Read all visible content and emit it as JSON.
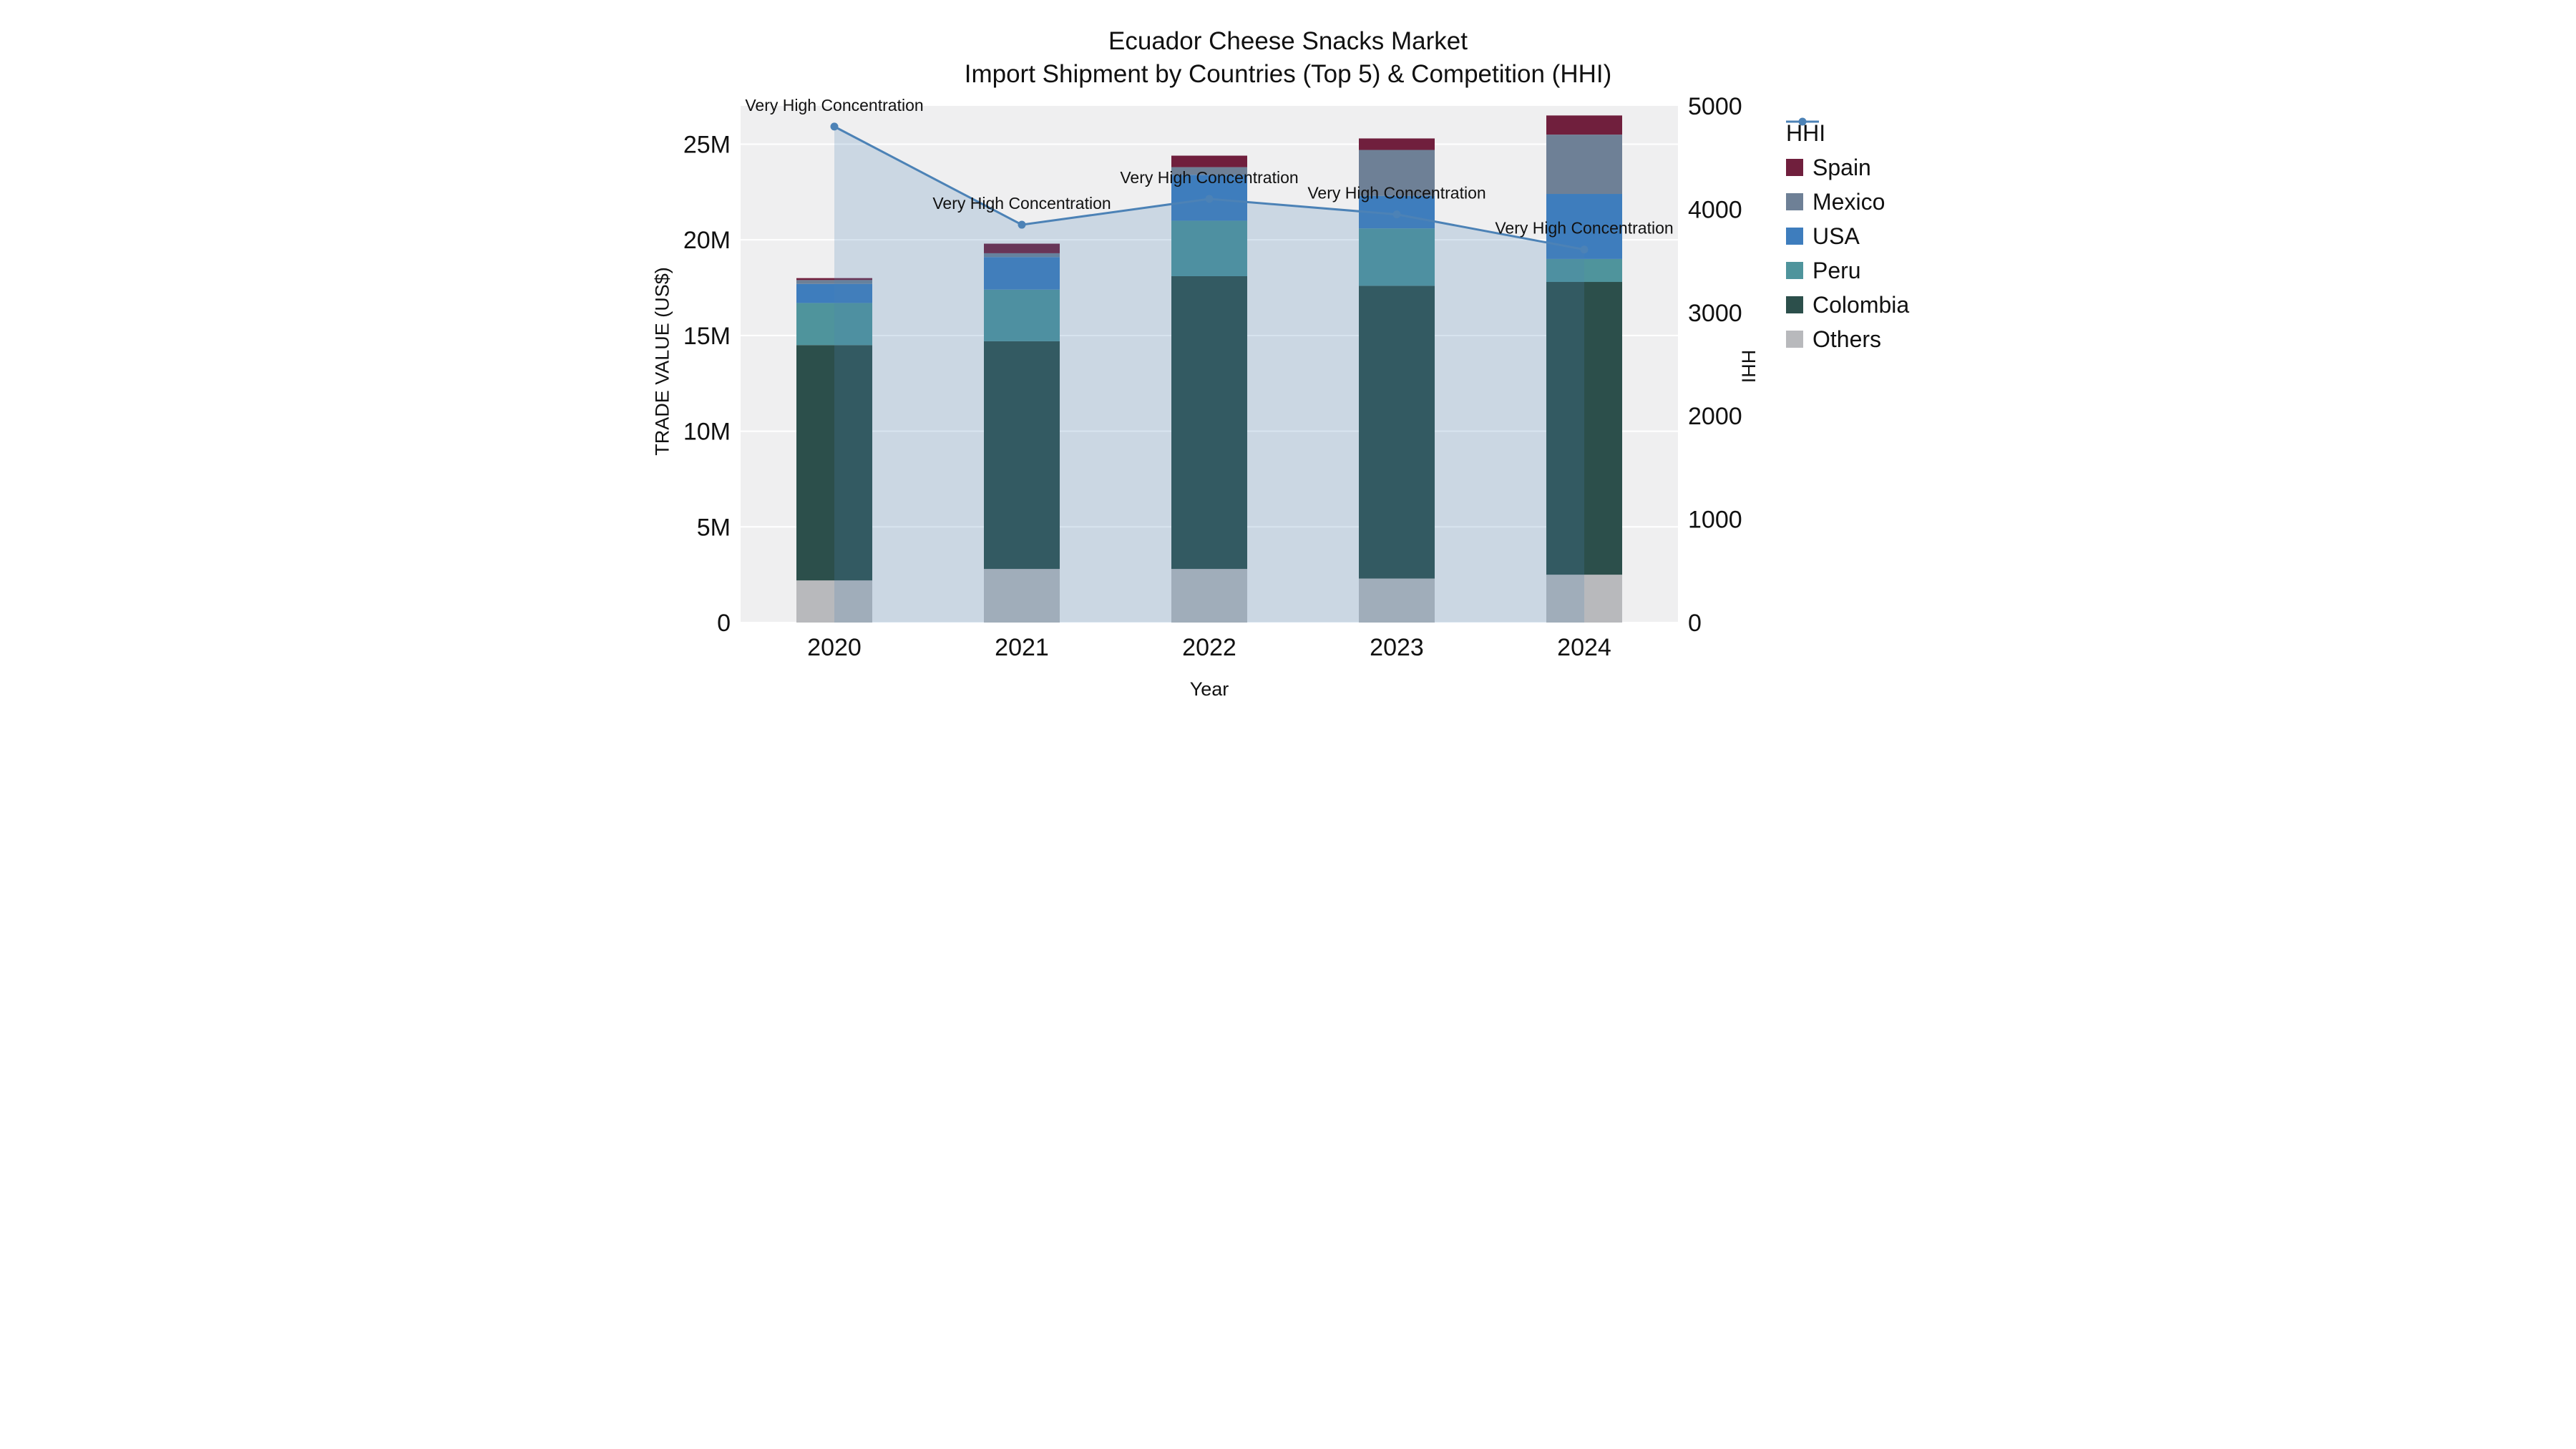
{
  "chart_data": {
    "type": "bar+line",
    "title": "Ecuador Cheese Snacks Market",
    "subtitle": "Import Shipment by Countries (Top 5) & Competition (HHI)",
    "xlabel": "Year",
    "ylabel_left": "TRADE VALUE (US$)",
    "ylabel_right": "HHI",
    "categories": [
      "2020",
      "2021",
      "2022",
      "2023",
      "2024"
    ],
    "values_unit": "USD",
    "bar_series": [
      {
        "name": "Others",
        "color": "#b8b9bc",
        "values": [
          2200000,
          2800000,
          2800000,
          2300000,
          2500000
        ]
      },
      {
        "name": "Colombia",
        "color": "#2c4f4b",
        "values": [
          12300000,
          11900000,
          15300000,
          15300000,
          15300000
        ]
      },
      {
        "name": "Peru",
        "color": "#4f949c",
        "values": [
          2200000,
          2700000,
          2900000,
          3000000,
          1200000
        ]
      },
      {
        "name": "USA",
        "color": "#3e7dbd",
        "values": [
          1000000,
          1700000,
          2400000,
          1700000,
          3400000
        ]
      },
      {
        "name": "Mexico",
        "color": "#6e8096",
        "values": [
          200000,
          200000,
          400000,
          2400000,
          3100000
        ]
      },
      {
        "name": "Spain",
        "color": "#701f3d",
        "values": [
          100000,
          500000,
          600000,
          600000,
          1000000
        ]
      }
    ],
    "line_series": {
      "name": "HHI",
      "color": "#4c82b6",
      "area_fill_opacity": 0.22,
      "values": [
        4800,
        3850,
        4100,
        3950,
        3610
      ]
    },
    "annotations": [
      "Very High Concentration",
      "Very High Concentration",
      "Very High Concentration",
      "Very High Concentration",
      "Very High Concentration"
    ],
    "axes": {
      "left": {
        "min": 0,
        "max": 27000000,
        "ticks": [
          0,
          5000000,
          10000000,
          15000000,
          20000000,
          25000000
        ],
        "tick_labels": [
          "0",
          "5M",
          "10M",
          "15M",
          "20M",
          "25M"
        ]
      },
      "right": {
        "min": 0,
        "max": 5000,
        "ticks": [
          0,
          1000,
          2000,
          3000,
          4000,
          5000
        ],
        "tick_labels": [
          "0",
          "1000",
          "2000",
          "3000",
          "4000",
          "5000"
        ]
      },
      "plot_bg": "#efeff0",
      "grid_color": "#ffffff"
    },
    "legend_order": [
      "HHI",
      "Spain",
      "Mexico",
      "USA",
      "Peru",
      "Colombia",
      "Others"
    ],
    "legend_position": "right"
  }
}
